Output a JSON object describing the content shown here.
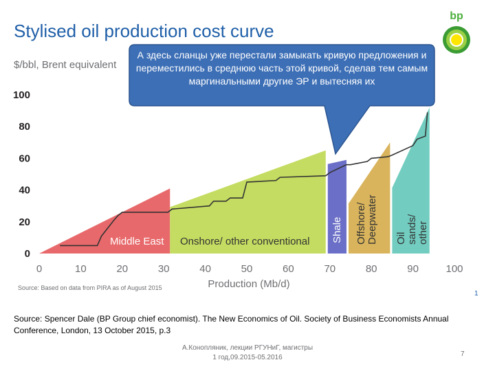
{
  "title": "Stylised oil production cost curve",
  "ylabel": "$/bbl, Brent equivalent",
  "callout_text": "А здесь сланцы уже перестали замыкать кривую предложения и переместились в среднюю часть этой кривой, сделав тем самым маргинальными другие ЭР и вытесняя их",
  "source_small": "Source: Based on data from PIRA as of August 2015",
  "slide_number": "1",
  "citation": "Source: Spencer Dale (BP Group chief economist). The New Economics of Oil. Society of Business Economists Annual Conference, London, 13 October 2015, p.3",
  "footer": {
    "author_line1": "А.Конопляник, лекции РГУНиГ, магистры",
    "author_line2": "1 год,09.2015-05.2016",
    "page_number": "7"
  },
  "logo": {
    "text": "bp"
  },
  "colors": {
    "title": "#1f5fa8",
    "middle_east": "#e8696b",
    "onshore": "#c4dc61",
    "shale": "#6b6fc7",
    "offshore": "#d9b45c",
    "oil_sands": "#72cdc0",
    "callout": "#3d6fb6",
    "curve": "#333333"
  },
  "chart_data": {
    "type": "area",
    "xlabel": "Production (Mb/d)",
    "ylabel": "$/bbl, Brent equivalent",
    "xlim": [
      0,
      100
    ],
    "ylim": [
      0,
      100
    ],
    "xticks": [
      "0",
      "10",
      "20",
      "30",
      "40",
      "50",
      "60",
      "70",
      "80",
      "90",
      "100"
    ],
    "yticks": [
      "0",
      "20",
      "40",
      "60",
      "80",
      "100"
    ],
    "categories": [
      {
        "name": "Middle East",
        "x_start": 0,
        "x_end": 31.5,
        "top": 41,
        "label": "Middle East"
      },
      {
        "name": "Onshore/ other conventional",
        "x_start": 31.5,
        "x_end": 69,
        "top": 65,
        "label": "Onshore/ other conventional"
      },
      {
        "name": "Shale",
        "x_start": 69.5,
        "x_end": 74,
        "top": 59,
        "label": "Shale"
      },
      {
        "name": "Offshore/ Deepwater",
        "x_start": 74.5,
        "x_end": 84.5,
        "top": 70,
        "label": "Offshore/ Deepwater"
      },
      {
        "name": "Oil sands/ other",
        "x_start": 85,
        "x_end": 94,
        "top": 92,
        "label": "Oil sands/ other"
      }
    ],
    "cost_curve": {
      "x": [
        5,
        14,
        15,
        18,
        19,
        20,
        22,
        31,
        32,
        41,
        42,
        45,
        46,
        49,
        50,
        57,
        58,
        69,
        70,
        74,
        75,
        79,
        80,
        84,
        85,
        90,
        91,
        93,
        93.5
      ],
      "y": [
        5,
        5,
        11,
        21,
        24,
        26,
        26,
        26,
        28,
        30,
        33,
        33,
        35,
        35,
        45,
        46,
        48,
        49,
        51,
        56,
        56,
        58,
        60,
        61,
        62,
        68,
        72,
        74,
        89
      ]
    }
  }
}
